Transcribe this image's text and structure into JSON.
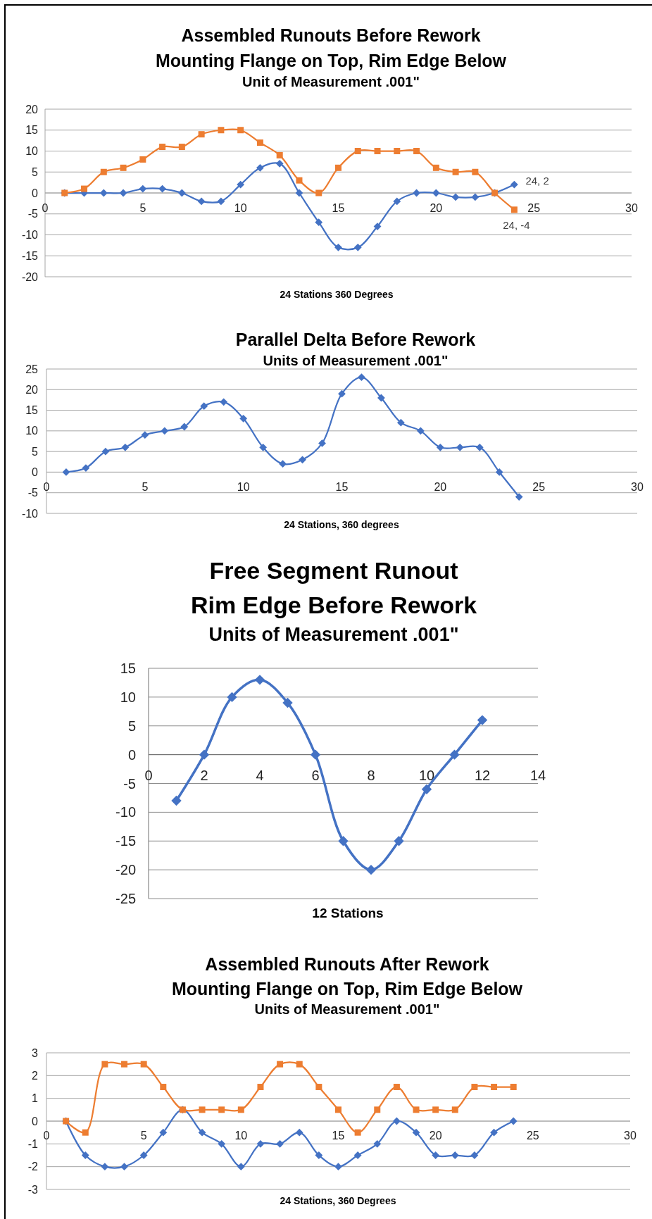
{
  "chart_data": [
    {
      "type": "line",
      "title": "Assembled Runouts Before Rework\nMounting Flange on Top, Rim Edge Below",
      "subtitle": "Unit of Measurement .001\"",
      "xlabel": "24 Stations 360 Degrees",
      "x": [
        1,
        2,
        3,
        4,
        5,
        6,
        7,
        8,
        9,
        10,
        11,
        12,
        13,
        14,
        15,
        16,
        17,
        18,
        19,
        20,
        21,
        22,
        23,
        24
      ],
      "series": [
        {
          "color": "#4472c4",
          "marker": "diamond",
          "values": [
            0,
            0,
            0,
            0,
            1,
            1,
            0,
            -2,
            -2,
            2,
            6,
            7,
            0,
            -7,
            -13,
            -13,
            -8,
            -2,
            0,
            0,
            -1,
            -1,
            0,
            2
          ]
        },
        {
          "color": "#ed7d31",
          "marker": "square",
          "values": [
            0,
            1,
            5,
            6,
            8,
            11,
            11,
            14,
            15,
            15,
            12,
            9,
            3,
            0,
            6,
            10,
            10,
            10,
            10,
            6,
            5,
            5,
            0,
            -4
          ]
        }
      ],
      "xlim": [
        0,
        30
      ],
      "xticks": [
        0,
        5,
        10,
        15,
        20,
        25,
        30
      ],
      "ylim": [
        -20,
        20
      ],
      "yticks": [
        -20,
        -15,
        -10,
        -5,
        0,
        5,
        10,
        15,
        20
      ],
      "grid": "y",
      "annotations": [
        {
          "text": "24, 2",
          "x": 24,
          "y": 2
        },
        {
          "text": "24, -4",
          "x": 24,
          "y": -4
        }
      ]
    },
    {
      "type": "line",
      "title": "Parallel Delta Before Rework",
      "subtitle": "Units of Measurement .001\"",
      "xlabel": "24 Stations, 360 degrees",
      "x": [
        1,
        2,
        3,
        4,
        5,
        6,
        7,
        8,
        9,
        10,
        11,
        12,
        13,
        14,
        15,
        16,
        17,
        18,
        19,
        20,
        21,
        22,
        23,
        24
      ],
      "series": [
        {
          "color": "#4472c4",
          "marker": "diamond",
          "values": [
            0,
            1,
            5,
            6,
            9,
            10,
            11,
            16,
            17,
            13,
            6,
            2,
            3,
            7,
            19,
            23,
            18,
            12,
            10,
            6,
            6,
            6,
            0,
            -6
          ]
        }
      ],
      "xlim": [
        0,
        30
      ],
      "xticks": [
        0,
        5,
        10,
        15,
        20,
        25,
        30
      ],
      "ylim": [
        -10,
        25
      ],
      "yticks": [
        -10,
        -5,
        0,
        5,
        10,
        15,
        20,
        25
      ],
      "grid": "y"
    },
    {
      "type": "line",
      "title": "Free Segment Runout\nRim Edge Before Rework",
      "subtitle": "Units of Measurement .001\"",
      "xlabel": "12 Stations",
      "x": [
        1,
        2,
        3,
        4,
        5,
        6,
        7,
        8,
        9,
        10,
        11,
        12
      ],
      "series": [
        {
          "color": "#4472c4",
          "marker": "diamond",
          "values": [
            -8,
            0,
            10,
            13,
            9,
            0,
            -15,
            -20,
            -15,
            -6,
            0,
            6
          ]
        }
      ],
      "xlim": [
        0,
        14
      ],
      "xticks": [
        0,
        2,
        4,
        6,
        8,
        10,
        12,
        14
      ],
      "ylim": [
        -25,
        15
      ],
      "yticks": [
        -25,
        -20,
        -15,
        -10,
        -5,
        0,
        5,
        10,
        15
      ],
      "grid": "y"
    },
    {
      "type": "line",
      "title": "Assembled Runouts After Rework\nMounting Flange on Top, Rim Edge Below",
      "subtitle": "Units of Measurement .001\"",
      "xlabel": "24 Stations, 360 Degrees",
      "x": [
        1,
        2,
        3,
        4,
        5,
        6,
        7,
        8,
        9,
        10,
        11,
        12,
        13,
        14,
        15,
        16,
        17,
        18,
        19,
        20,
        21,
        22,
        23,
        24
      ],
      "series": [
        {
          "color": "#4472c4",
          "marker": "diamond",
          "values": [
            0,
            -1.5,
            -2,
            -2,
            -1.5,
            -0.5,
            0.5,
            -0.5,
            -1,
            -2,
            -1,
            -1,
            -0.5,
            -1.5,
            -2,
            -1.5,
            -1,
            0,
            -0.5,
            -1.5,
            -1.5,
            -1.5,
            -0.5,
            0
          ]
        },
        {
          "color": "#ed7d31",
          "marker": "square",
          "values": [
            0,
            -0.5,
            2.5,
            2.5,
            2.5,
            1.5,
            0.5,
            0.5,
            0.5,
            0.5,
            1.5,
            2.5,
            2.5,
            1.5,
            0.5,
            -0.5,
            0.5,
            1.5,
            0.5,
            0.5,
            0.5,
            1.5,
            1.5,
            1.5
          ]
        }
      ],
      "xlim": [
        0,
        30
      ],
      "xticks": [
        0,
        5,
        10,
        15,
        20,
        25,
        30
      ],
      "ylim": [
        -3,
        3
      ],
      "yticks": [
        -3,
        -2,
        -1,
        0,
        1,
        2,
        3
      ],
      "grid": "y"
    }
  ]
}
